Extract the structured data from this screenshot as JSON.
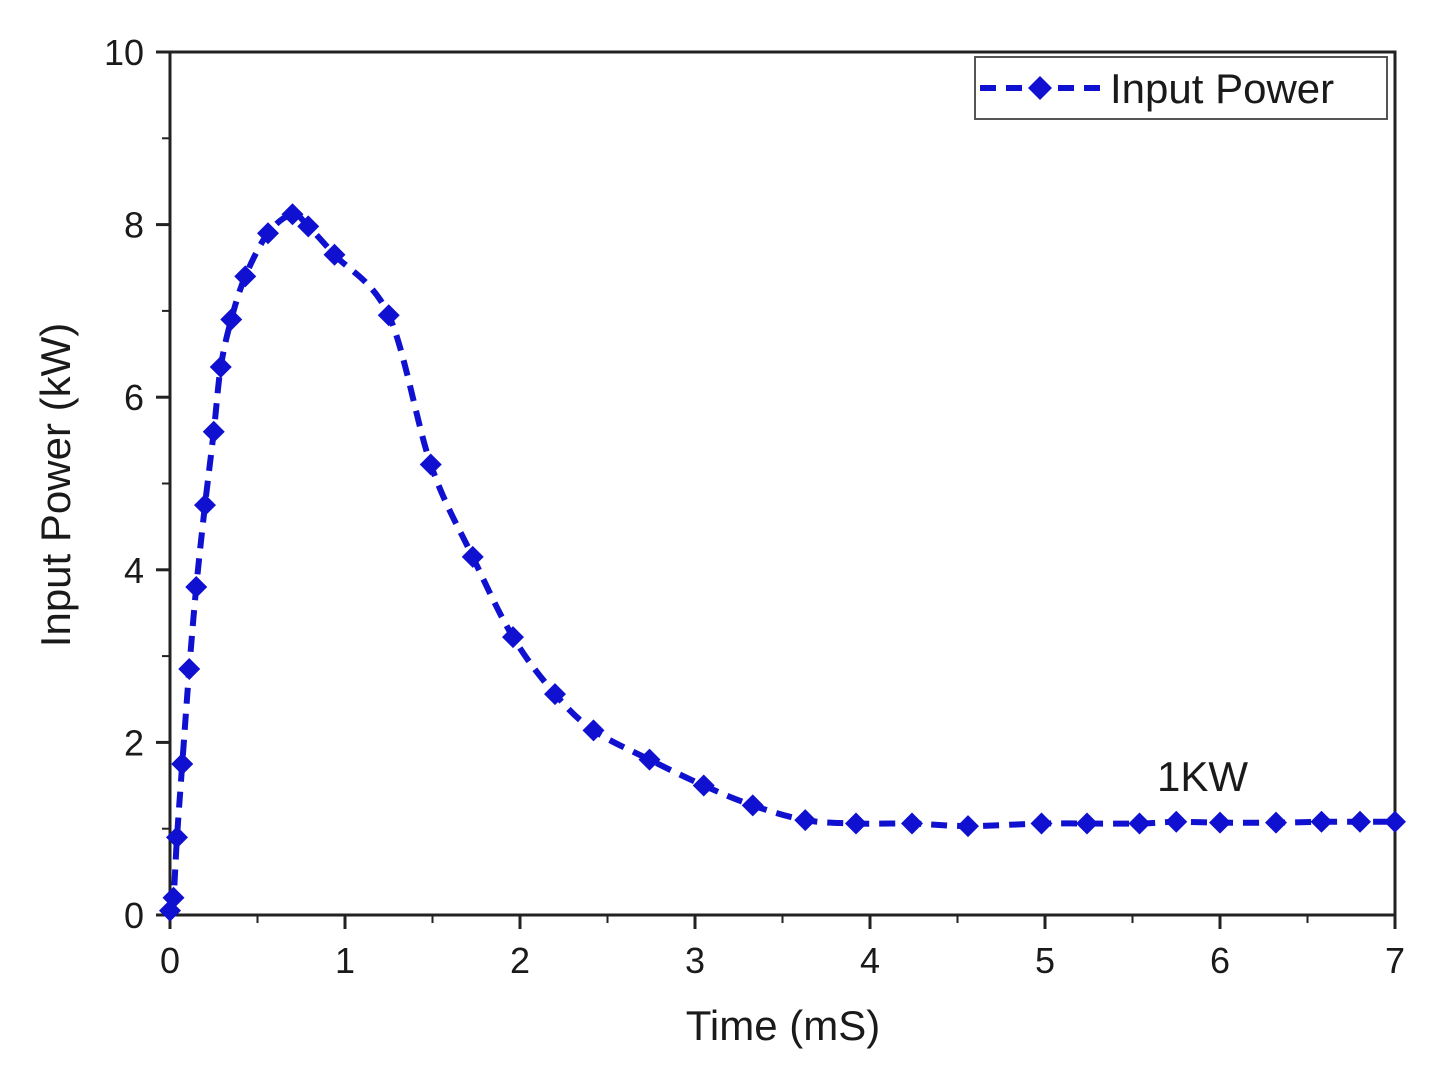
{
  "chart_data": {
    "type": "line",
    "title": "",
    "xlabel": "Time (mS)",
    "ylabel": "Input Power (kW)",
    "xlim": [
      0,
      7
    ],
    "ylim": [
      0,
      10
    ],
    "xticks": [
      0,
      1,
      2,
      3,
      4,
      5,
      6,
      7
    ],
    "yticks": [
      0,
      2,
      4,
      6,
      8,
      10
    ],
    "grid": false,
    "legend_position": "top-right",
    "color": "#1010d0",
    "line_style": "dashed",
    "marker": "diamond",
    "series": [
      {
        "name": "Input Power",
        "x": [
          0.0,
          0.02,
          0.04,
          0.07,
          0.11,
          0.15,
          0.2,
          0.25,
          0.29,
          0.35,
          0.43,
          0.56,
          0.7,
          0.79,
          0.94,
          1.25,
          1.49,
          1.73,
          1.96,
          2.2,
          2.42,
          2.74,
          3.05,
          3.33,
          3.63,
          3.92,
          4.24,
          4.56,
          4.98,
          5.24,
          5.54,
          5.75,
          6.0,
          6.32,
          6.58,
          6.8,
          7.0
        ],
        "values": [
          0.05,
          0.2,
          0.9,
          1.75,
          2.85,
          3.8,
          4.75,
          5.6,
          6.35,
          6.9,
          7.4,
          7.9,
          8.12,
          7.98,
          7.65,
          6.95,
          5.22,
          4.15,
          3.22,
          2.56,
          2.14,
          1.8,
          1.5,
          1.27,
          1.1,
          1.06,
          1.06,
          1.03,
          1.06,
          1.06,
          1.06,
          1.08,
          1.07,
          1.07,
          1.08,
          1.08,
          1.08
        ]
      }
    ],
    "annotations": [
      {
        "text": "1KW",
        "x": 5.9,
        "y": 1.6
      }
    ]
  }
}
